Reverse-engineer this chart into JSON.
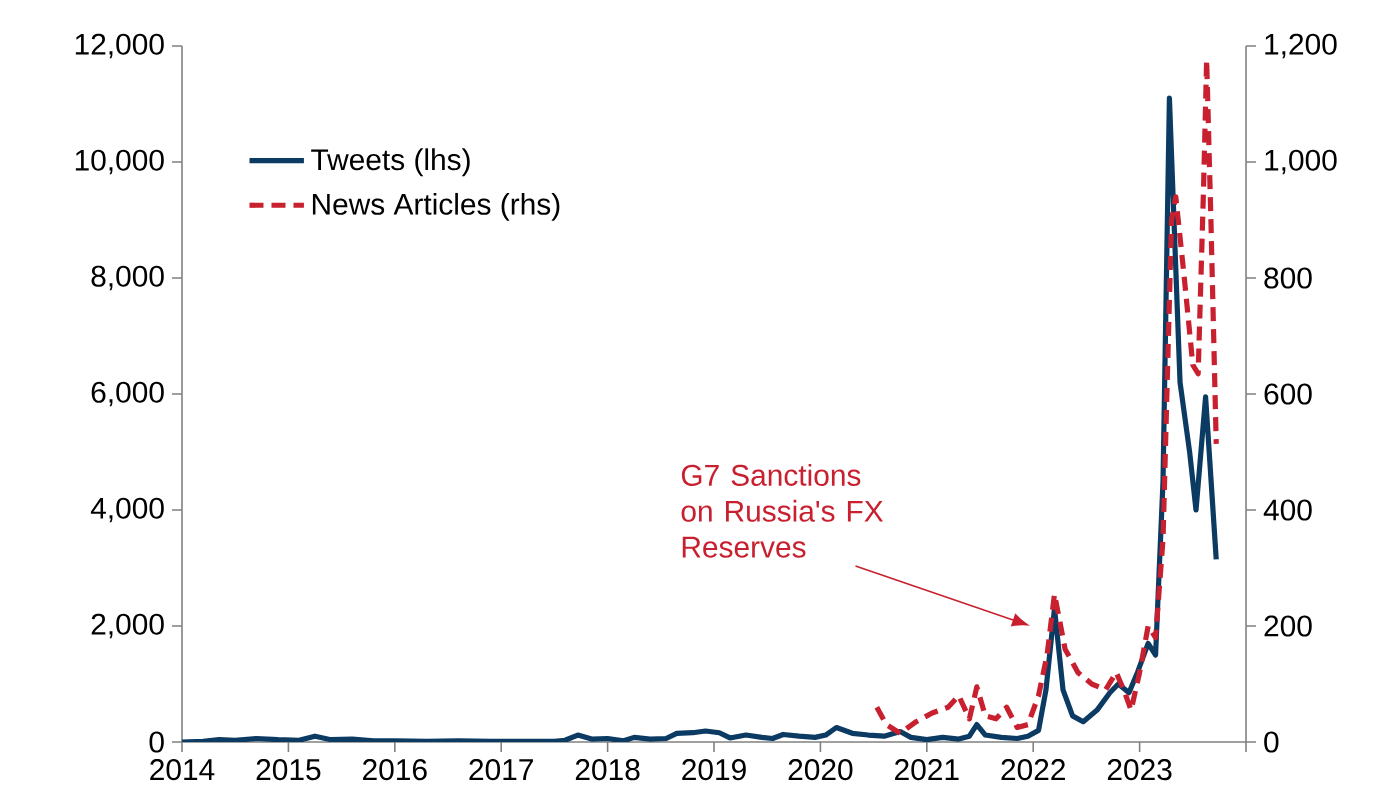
{
  "chart_data": {
    "type": "line",
    "xlim": [
      2014,
      2024
    ],
    "xticks": [
      2014,
      2015,
      2016,
      2017,
      2018,
      2019,
      2020,
      2021,
      2022,
      2023,
      {
        "value": 2024,
        "label": null
      }
    ],
    "ylim": [
      0,
      12000
    ],
    "yticks": [
      0,
      {
        "value": 2000,
        "label": "2,000"
      },
      {
        "value": 4000,
        "label": "4,000"
      },
      {
        "value": 6000,
        "label": "6,000"
      },
      {
        "value": 8000,
        "label": "8,000"
      },
      {
        "value": 10000,
        "label": "10,000"
      },
      {
        "value": 12000,
        "label": "12,000"
      }
    ],
    "y2lim": [
      0,
      1200
    ],
    "y2ticks": [
      0,
      200,
      400,
      600,
      800,
      {
        "value": 1000,
        "label": "1,000"
      },
      {
        "value": 1200,
        "label": "1,200"
      }
    ],
    "legend": "top left",
    "grid": false,
    "annotations": [
      "G7 Sanctions on Russia's FX Reserves"
    ],
    "series": [
      {
        "name": "Tweets (lhs)",
        "color": "#0b3a62",
        "line_style": "solid",
        "axis": "y",
        "x": [
          2014.0,
          2014.2,
          2014.35,
          2014.5,
          2014.7,
          2014.9,
          2015.1,
          2015.25,
          2015.4,
          2015.6,
          2015.8,
          2016.0,
          2016.3,
          2016.6,
          2016.9,
          2017.2,
          2017.5,
          2017.6,
          2017.72,
          2017.85,
          2018.0,
          2018.15,
          2018.25,
          2018.4,
          2018.55,
          2018.65,
          2018.8,
          2018.92,
          2019.05,
          2019.15,
          2019.3,
          2019.45,
          2019.55,
          2019.65,
          2019.8,
          2019.95,
          2020.05,
          2020.15,
          2020.3,
          2020.45,
          2020.6,
          2020.75,
          2020.85,
          2021.0,
          2021.15,
          2021.3,
          2021.4,
          2021.47,
          2021.55,
          2021.7,
          2021.85,
          2021.95,
          2022.05,
          2022.12,
          2022.2,
          2022.28,
          2022.37,
          2022.47,
          2022.6,
          2022.72,
          2022.8,
          2022.9,
          2022.98,
          2023.08,
          2023.15,
          2023.22,
          2023.28,
          2023.38,
          2023.47,
          2023.53,
          2023.62,
          2023.72
        ],
        "values": [
          0,
          10,
          40,
          30,
          60,
          40,
          30,
          100,
          40,
          50,
          20,
          20,
          10,
          20,
          10,
          10,
          10,
          30,
          120,
          50,
          60,
          20,
          80,
          50,
          60,
          150,
          160,
          190,
          160,
          70,
          120,
          80,
          60,
          130,
          100,
          80,
          120,
          250,
          150,
          120,
          100,
          180,
          80,
          40,
          80,
          50,
          100,
          300,
          120,
          80,
          60,
          100,
          200,
          900,
          2300,
          900,
          450,
          350,
          550,
          850,
          1000,
          850,
          1200,
          1700,
          1500,
          4500,
          11100,
          6200,
          5000,
          4000,
          5950,
          3150
        ]
      },
      {
        "name": "News Articles (rhs)",
        "color": "#c8202f",
        "line_style": "dashed",
        "axis": "y2",
        "x": [
          2020.53,
          2020.62,
          2020.75,
          2020.9,
          2021.05,
          2021.2,
          2021.3,
          2021.4,
          2021.47,
          2021.55,
          2021.65,
          2021.75,
          2021.85,
          2021.95,
          2022.05,
          2022.13,
          2022.2,
          2022.3,
          2022.42,
          2022.55,
          2022.68,
          2022.78,
          2022.85,
          2022.92,
          2023.0,
          2023.08,
          2023.15,
          2023.22,
          2023.3,
          2023.34,
          2023.42,
          2023.5,
          2023.55,
          2023.6,
          2023.63,
          2023.67,
          2023.72
        ],
        "values": [
          60,
          30,
          15,
          35,
          50,
          60,
          80,
          40,
          95,
          45,
          40,
          60,
          25,
          30,
          80,
          150,
          255,
          160,
          120,
          100,
          90,
          120,
          90,
          55,
          120,
          200,
          180,
          350,
          900,
          940,
          800,
          650,
          635,
          950,
          1176,
          900,
          514
        ]
      }
    ]
  }
}
